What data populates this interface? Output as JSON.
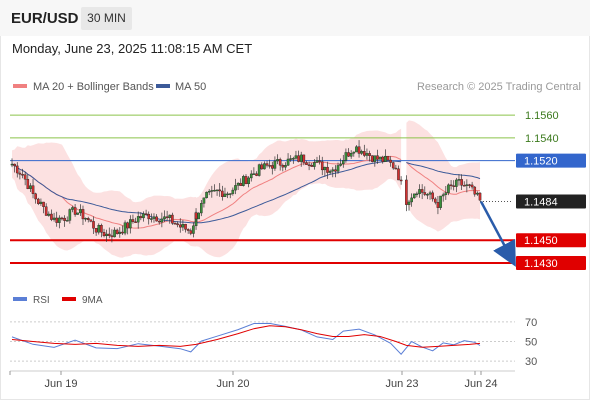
{
  "header": {
    "symbol": "EUR/USD",
    "timeframe": "30 MIN",
    "datetime": "Monday, June 23, 2025 11:08:15 AM CET"
  },
  "legend": {
    "ma20": "MA 20 + Bollinger Bands",
    "ma50": "MA 50",
    "source": "Research © 2025 Trading Central",
    "rsi": "RSI",
    "rsi_ma": "9MA"
  },
  "colors": {
    "ma20": "#f08080",
    "bands_fill": "#fbdcdc",
    "ma50": "#3c5a99",
    "resistance_green": "#8bc34a",
    "pivot_blue": "#3366cc",
    "support_red": "#e00000",
    "current_price": "#222222",
    "forecast_arrow": "#2a5caa",
    "rsi": "#5b7fd6",
    "rsi_ma": "#e00000",
    "candle_up": "#3a8f3a",
    "candle_down": "#d23030"
  },
  "chart_data": [
    {
      "type": "candlestick",
      "title": "EUR/USD 30 MIN",
      "ylim": [
        1.1415,
        1.1575
      ],
      "x_labels": [
        "Jun 19",
        "Jun 20",
        "Jun 23",
        "Jun 24"
      ],
      "levels": [
        {
          "value": 1.156,
          "label": "1.1560",
          "kind": "resistance"
        },
        {
          "value": 1.154,
          "label": "1.1540",
          "kind": "resistance"
        },
        {
          "value": 1.152,
          "label": "1.1520",
          "kind": "pivot"
        },
        {
          "value": 1.1484,
          "label": "1.1484",
          "kind": "current"
        },
        {
          "value": 1.145,
          "label": "1.1450",
          "kind": "support"
        },
        {
          "value": 1.143,
          "label": "1.1430",
          "kind": "support"
        }
      ],
      "forecast": {
        "from": 1.1484,
        "to": 1.1431,
        "direction": "down"
      },
      "close_path": [
        [
          0,
          1.1517
        ],
        [
          4,
          1.1508
        ],
        [
          8,
          1.149
        ],
        [
          12,
          1.1478
        ],
        [
          16,
          1.1468
        ],
        [
          20,
          1.147
        ],
        [
          24,
          1.1476
        ],
        [
          28,
          1.147
        ],
        [
          32,
          1.146
        ],
        [
          36,
          1.1455
        ],
        [
          40,
          1.1457
        ],
        [
          44,
          1.1463
        ],
        [
          48,
          1.147
        ],
        [
          52,
          1.1472
        ],
        [
          56,
          1.147
        ],
        [
          60,
          1.1468
        ],
        [
          64,
          1.1462
        ],
        [
          68,
          1.1458
        ],
        [
          70,
          1.1472
        ],
        [
          74,
          1.1488
        ],
        [
          78,
          1.1493
        ],
        [
          82,
          1.1492
        ],
        [
          86,
          1.1498
        ],
        [
          90,
          1.1506
        ],
        [
          94,
          1.1512
        ],
        [
          98,
          1.1516
        ],
        [
          102,
          1.1518
        ],
        [
          106,
          1.152
        ],
        [
          110,
          1.1522
        ],
        [
          114,
          1.1519
        ],
        [
          118,
          1.1515
        ],
        [
          122,
          1.1512
        ],
        [
          126,
          1.1522
        ],
        [
          130,
          1.1532
        ],
        [
          134,
          1.1528
        ],
        [
          138,
          1.1522
        ],
        [
          142,
          1.152
        ],
        [
          146,
          1.1514
        ],
        [
          150,
          1.1485
        ],
        [
          154,
          1.1495
        ],
        [
          158,
          1.149
        ],
        [
          162,
          1.1482
        ],
        [
          166,
          1.1495
        ],
        [
          170,
          1.15
        ],
        [
          174,
          1.1496
        ],
        [
          178,
          1.1484
        ]
      ],
      "sessions": [
        {
          "start": 0,
          "end": 70
        },
        {
          "start": 70,
          "end": 148
        },
        {
          "start": 150,
          "end": 178
        }
      ]
    },
    {
      "type": "line",
      "title": "RSI",
      "ylim": [
        25,
        80
      ],
      "yticks": [
        "70",
        "50",
        "30"
      ],
      "ytick_values": [
        70,
        50,
        30
      ],
      "series": [
        {
          "name": "RSI",
          "points": [
            [
              0,
              56
            ],
            [
              8,
              48
            ],
            [
              16,
              44
            ],
            [
              24,
              52
            ],
            [
              32,
              45
            ],
            [
              40,
              42
            ],
            [
              48,
              49
            ],
            [
              56,
              47
            ],
            [
              64,
              44
            ],
            [
              68,
              41
            ],
            [
              72,
              50
            ],
            [
              78,
              56
            ],
            [
              86,
              62
            ],
            [
              92,
              70
            ],
            [
              98,
              68
            ],
            [
              104,
              64
            ],
            [
              110,
              60
            ],
            [
              116,
              55
            ],
            [
              122,
              52
            ],
            [
              126,
              60
            ],
            [
              132,
              64
            ],
            [
              138,
              55
            ],
            [
              144,
              48
            ],
            [
              148,
              38
            ],
            [
              152,
              50
            ],
            [
              156,
              46
            ],
            [
              160,
              42
            ],
            [
              164,
              48
            ],
            [
              168,
              46
            ],
            [
              172,
              52
            ],
            [
              176,
              48
            ],
            [
              178,
              45
            ]
          ]
        },
        {
          "name": "9MA",
          "points": [
            [
              0,
              52
            ],
            [
              8,
              50
            ],
            [
              16,
              48
            ],
            [
              24,
              47
            ],
            [
              32,
              48
            ],
            [
              40,
              46
            ],
            [
              48,
              45
            ],
            [
              56,
              46
            ],
            [
              64,
              45
            ],
            [
              70,
              47
            ],
            [
              78,
              52
            ],
            [
              86,
              58
            ],
            [
              92,
              63
            ],
            [
              98,
              66
            ],
            [
              104,
              65
            ],
            [
              110,
              62
            ],
            [
              116,
              58
            ],
            [
              122,
              55
            ],
            [
              128,
              55
            ],
            [
              134,
              57
            ],
            [
              140,
              55
            ],
            [
              146,
              50
            ],
            [
              150,
              46
            ],
            [
              156,
              44
            ],
            [
              162,
              45
            ],
            [
              168,
              46
            ],
            [
              174,
              47
            ],
            [
              178,
              48
            ]
          ]
        }
      ]
    }
  ]
}
